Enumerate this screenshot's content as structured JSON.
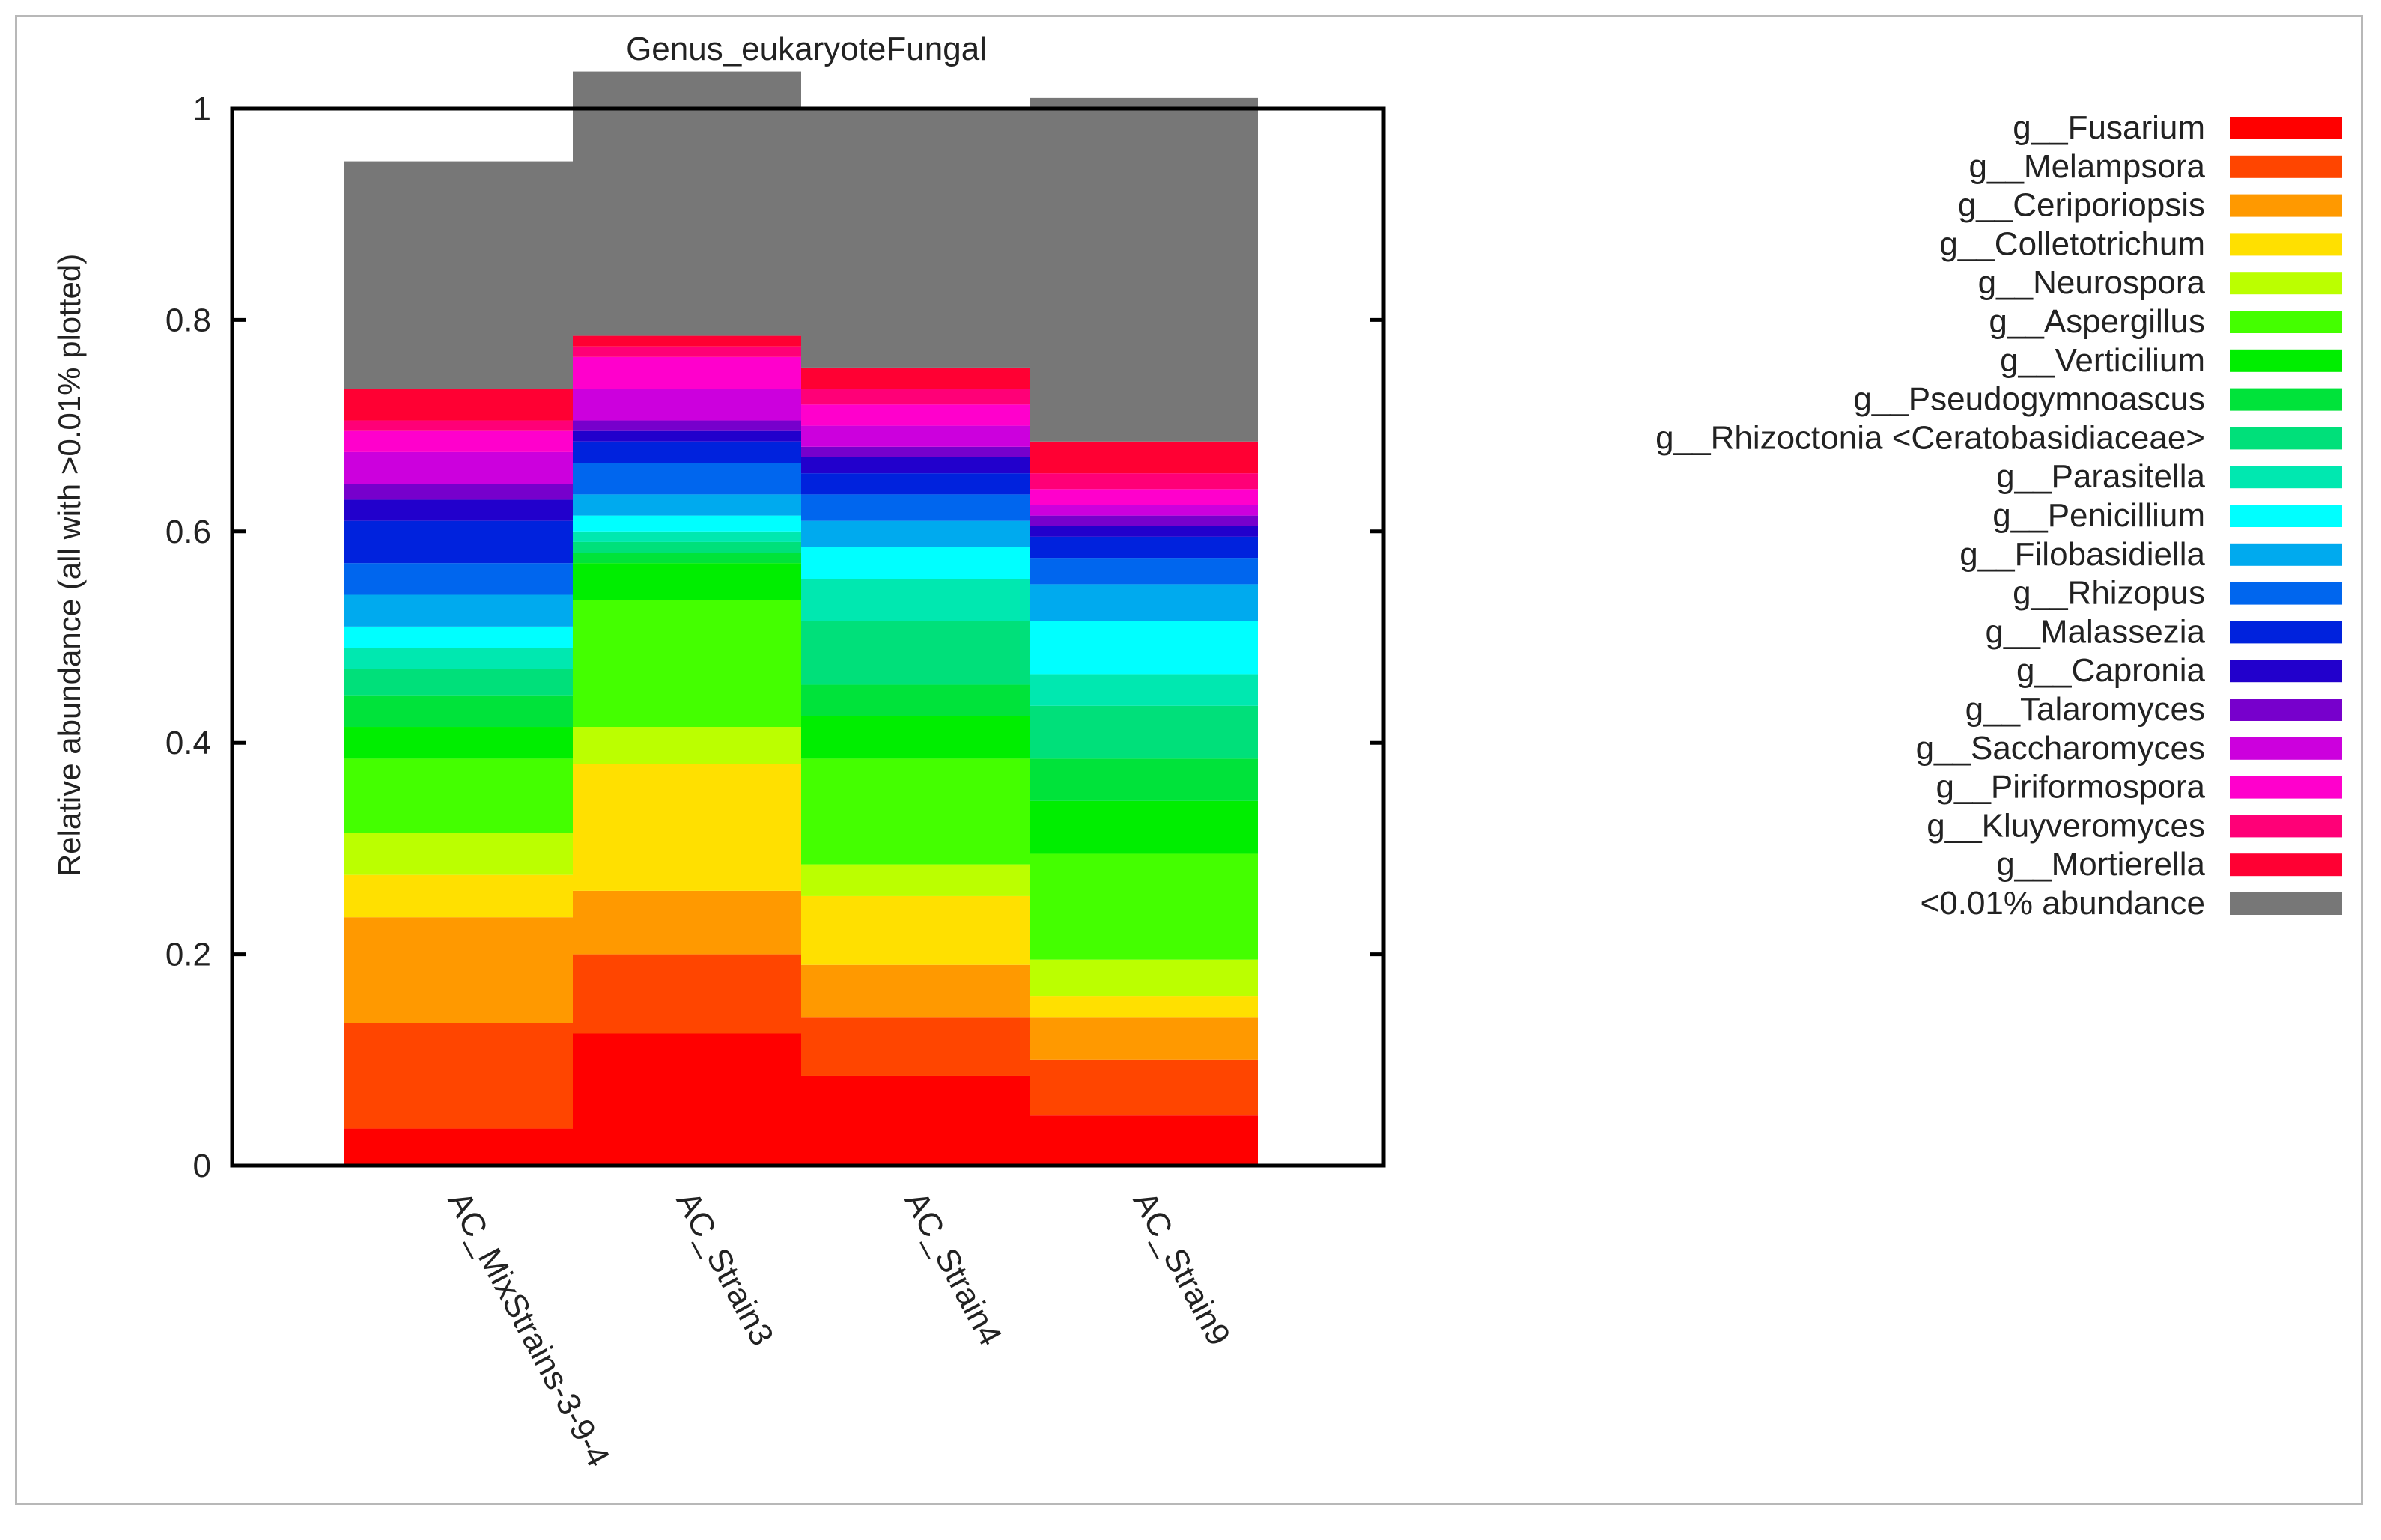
{
  "chart_data": {
    "type": "bar",
    "stacked": true,
    "title": "Genus_eukaryoteFungal",
    "xlabel": "",
    "ylabel": "Relative abundance (all with >0.01% plotted)",
    "ylim": [
      0,
      1
    ],
    "yticks": [
      0,
      0.2,
      0.4,
      0.6,
      0.8,
      1
    ],
    "ytick_labels": [
      "0",
      "0.2",
      "0.4",
      "0.6",
      "0.8",
      "1"
    ],
    "categories": [
      "AC_MixStrains-3-9-4",
      "AC_Strain3",
      "AC_Strain4",
      "AC_Strain9"
    ],
    "legend_position": "right",
    "series": [
      {
        "name": "g__Fusarium",
        "color": "#ff0000",
        "values": [
          0.035,
          0.125,
          0.085,
          0.048
        ]
      },
      {
        "name": "g__Melampsora",
        "color": "#ff4500",
        "values": [
          0.1,
          0.075,
          0.055,
          0.052
        ]
      },
      {
        "name": "g__Ceriporiopsis",
        "color": "#ff9900",
        "values": [
          0.1,
          0.06,
          0.05,
          0.04
        ]
      },
      {
        "name": "g__Colletotrichum",
        "color": "#ffe000",
        "values": [
          0.04,
          0.12,
          0.065,
          0.02
        ]
      },
      {
        "name": "g__Neurospora",
        "color": "#bbff00",
        "values": [
          0.04,
          0.035,
          0.03,
          0.035
        ]
      },
      {
        "name": "g__Aspergillus",
        "color": "#44ff00",
        "values": [
          0.07,
          0.12,
          0.1,
          0.1
        ]
      },
      {
        "name": "g__Verticilium",
        "color": "#00ee00",
        "values": [
          0.03,
          0.035,
          0.04,
          0.05
        ]
      },
      {
        "name": "g__Pseudogymnoascus",
        "color": "#00e33a",
        "values": [
          0.03,
          0.01,
          0.03,
          0.04
        ]
      },
      {
        "name": "g__Rhizoctonia <Ceratobasidiaceae>",
        "color": "#00e07a",
        "values": [
          0.025,
          0.01,
          0.06,
          0.05
        ]
      },
      {
        "name": "g__Parasitella",
        "color": "#00e8b0",
        "values": [
          0.02,
          0.01,
          0.04,
          0.03
        ]
      },
      {
        "name": "g__Penicillium",
        "color": "#00ffff",
        "values": [
          0.02,
          0.015,
          0.03,
          0.05
        ]
      },
      {
        "name": "g__Filobasidiella",
        "color": "#00aaee",
        "values": [
          0.03,
          0.02,
          0.025,
          0.035
        ]
      },
      {
        "name": "g__Rhizopus",
        "color": "#0066ee",
        "values": [
          0.03,
          0.03,
          0.025,
          0.025
        ]
      },
      {
        "name": "g__Malassezia",
        "color": "#0022dd",
        "values": [
          0.04,
          0.02,
          0.02,
          0.02
        ]
      },
      {
        "name": "g__Capronia",
        "color": "#2200cc",
        "values": [
          0.02,
          0.01,
          0.015,
          0.01
        ]
      },
      {
        "name": "g__Talaromyces",
        "color": "#7700cc",
        "values": [
          0.015,
          0.01,
          0.01,
          0.01
        ]
      },
      {
        "name": "g__Saccharomyces",
        "color": "#cc00dd",
        "values": [
          0.03,
          0.03,
          0.02,
          0.01
        ]
      },
      {
        "name": "g__Piriformospora",
        "color": "#ff00cc",
        "values": [
          0.02,
          0.03,
          0.02,
          0.015
        ]
      },
      {
        "name": "g__Kluyveromyces",
        "color": "#ff0077",
        "values": [
          0.01,
          0.01,
          0.015,
          0.015
        ]
      },
      {
        "name": "g__Mortierella",
        "color": "#ff0033",
        "values": [
          0.03,
          0.01,
          0.02,
          0.03
        ]
      },
      {
        "name": "<0.01% abundance",
        "color": "#777777",
        "values": [
          0.215,
          0.25,
          0.245,
          0.325
        ]
      }
    ]
  }
}
